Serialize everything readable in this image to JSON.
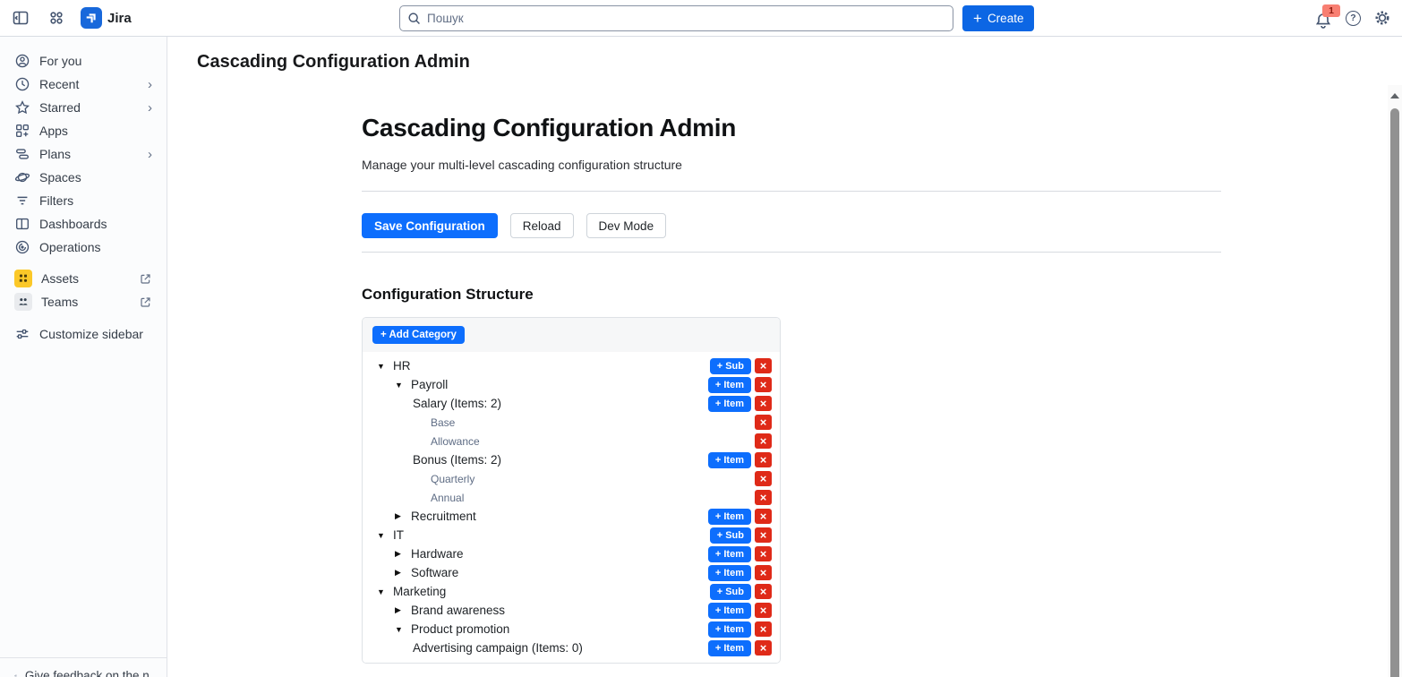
{
  "topbar": {
    "app_name": "Jira",
    "search_placeholder": "Пошук",
    "create_label": "Create",
    "notification_count": "1",
    "icons": [
      "collapse-sidebar-icon",
      "app-switcher-icon",
      "jira-logo",
      "search-icon",
      "plus-icon",
      "notification-bell-icon",
      "help-icon",
      "settings-gear-icon",
      "avatar"
    ]
  },
  "sidebar": {
    "items": [
      {
        "label": "For you",
        "icon": "person-icon",
        "chevron": false
      },
      {
        "label": "Recent",
        "icon": "clock-icon",
        "chevron": true
      },
      {
        "label": "Starred",
        "icon": "star-icon",
        "chevron": true
      },
      {
        "label": "Apps",
        "icon": "apps-grid-icon",
        "chevron": false
      },
      {
        "label": "Plans",
        "icon": "plans-icon",
        "chevron": true
      },
      {
        "label": "Spaces",
        "icon": "planet-icon",
        "chevron": false
      },
      {
        "label": "Filters",
        "icon": "filter-icon",
        "chevron": false
      },
      {
        "label": "Dashboards",
        "icon": "dashboard-icon",
        "chevron": false
      },
      {
        "label": "Operations",
        "icon": "operations-icon",
        "chevron": false
      }
    ],
    "linked_items": [
      {
        "label": "Assets",
        "icon": "assets-tile-icon",
        "external": true
      },
      {
        "label": "Teams",
        "icon": "teams-tile-icon",
        "external": true
      }
    ],
    "customize_label": "Customize sidebar",
    "feedback_label": "Give feedback on the n..."
  },
  "page": {
    "title": "Cascading Configuration Admin"
  },
  "main": {
    "heading": "Cascading Configuration Admin",
    "subtitle": "Manage your multi-level cascading configuration structure",
    "toolbar": {
      "save_label": "Save Configuration",
      "reload_label": "Reload",
      "dev_mode_label": "Dev Mode"
    },
    "section_title": "Configuration Structure",
    "add_category_label": "+ Add Category",
    "tree": {
      "rows": [
        {
          "level": 0,
          "arrow": "down",
          "label": "HR",
          "action": "+ Sub",
          "leaf": false
        },
        {
          "level": 1,
          "arrow": "down",
          "label": "Payroll",
          "action": "+ Item",
          "leaf": false
        },
        {
          "level": 2,
          "arrow": "none",
          "label": "Salary (Items: 2)",
          "action": "+ Item",
          "leaf": false
        },
        {
          "level": 3,
          "arrow": "none",
          "label": "Base",
          "action": null,
          "leaf": true
        },
        {
          "level": 3,
          "arrow": "none",
          "label": "Allowance",
          "action": null,
          "leaf": true
        },
        {
          "level": 2,
          "arrow": "none",
          "label": "Bonus (Items: 2)",
          "action": "+ Item",
          "leaf": false
        },
        {
          "level": 3,
          "arrow": "none",
          "label": "Quarterly",
          "action": null,
          "leaf": true
        },
        {
          "level": 3,
          "arrow": "none",
          "label": "Annual",
          "action": null,
          "leaf": true
        },
        {
          "level": 1,
          "arrow": "right",
          "label": "Recruitment",
          "action": "+ Item",
          "leaf": false
        },
        {
          "level": 0,
          "arrow": "down",
          "label": "IT",
          "action": "+ Sub",
          "leaf": false
        },
        {
          "level": 1,
          "arrow": "right",
          "label": "Hardware",
          "action": "+ Item",
          "leaf": false
        },
        {
          "level": 1,
          "arrow": "right",
          "label": "Software",
          "action": "+ Item",
          "leaf": false
        },
        {
          "level": 0,
          "arrow": "down",
          "label": "Marketing",
          "action": "+ Sub",
          "leaf": false
        },
        {
          "level": 1,
          "arrow": "right",
          "label": "Brand awareness",
          "action": "+ Item",
          "leaf": false
        },
        {
          "level": 1,
          "arrow": "down",
          "label": "Product promotion",
          "action": "+ Item",
          "leaf": false
        },
        {
          "level": 2,
          "arrow": "none",
          "label": "Advertising campaign (Items: 0)",
          "action": "+ Item",
          "leaf": false
        }
      ]
    }
  },
  "colors": {
    "accent_blue": "#0d6efd",
    "create_blue": "#0C66E4",
    "jira_logo_blue": "#1868DB",
    "danger_red": "#df2a18",
    "badge_salmon": "#f87f72",
    "leaf_text": "#5e6c84",
    "assets_yellow": "#fbc828"
  }
}
